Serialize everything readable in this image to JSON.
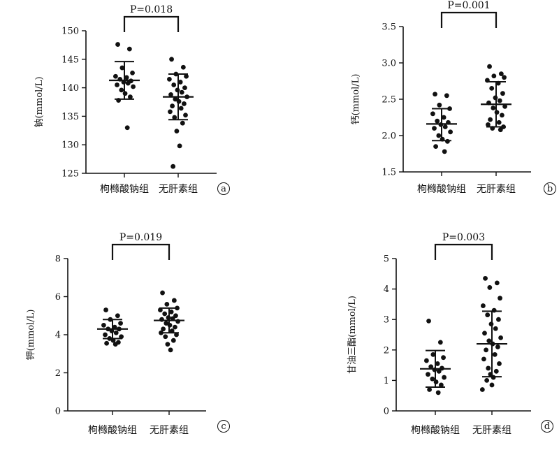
{
  "chart_data": [
    {
      "panel": "a",
      "type": "scatter",
      "ylabel": "钠(mmol/L)",
      "ylim": [
        125,
        150
      ],
      "yticks": [
        125,
        130,
        135,
        140,
        145,
        150
      ],
      "categories": [
        "枸橼酸钠组",
        "无肝素组"
      ],
      "significance": "P=0.018",
      "series": [
        {
          "category": "枸橼酸钠组",
          "mean": 141.3,
          "sd_low": 138.0,
          "sd_high": 144.6,
          "values": [
            147.6,
            146.8,
            143.5,
            142.6,
            142.0,
            141.8,
            141.5,
            141.2,
            141.0,
            140.8,
            140.5,
            140.2,
            139.6,
            139.0,
            138.4,
            137.8,
            133.0
          ]
        },
        {
          "category": "无肝素组",
          "mean": 138.4,
          "sd_low": 134.4,
          "sd_high": 142.4,
          "values": [
            145.0,
            143.6,
            142.4,
            142.0,
            141.5,
            141.0,
            140.5,
            140.0,
            139.6,
            139.2,
            138.8,
            138.4,
            138.0,
            137.6,
            137.2,
            136.8,
            136.4,
            135.8,
            135.2,
            134.8,
            133.8,
            132.4,
            129.8,
            126.2
          ]
        }
      ]
    },
    {
      "panel": "b",
      "type": "scatter",
      "ylabel": "钙(mmol/L)",
      "ylim": [
        1.5,
        3.5
      ],
      "yticks": [
        1.5,
        2.0,
        2.5,
        3.0,
        3.5
      ],
      "categories": [
        "枸橼酸钠组",
        "无肝素组"
      ],
      "significance": "P=0.001",
      "series": [
        {
          "category": "枸橼酸钠组",
          "mean": 2.16,
          "sd_low": 1.93,
          "sd_high": 2.37,
          "values": [
            2.57,
            2.55,
            2.42,
            2.37,
            2.3,
            2.25,
            2.2,
            2.18,
            2.15,
            2.12,
            2.1,
            2.05,
            2.0,
            1.95,
            1.92,
            1.85,
            1.78
          ]
        },
        {
          "category": "无肝素组",
          "mean": 2.43,
          "sd_low": 2.12,
          "sd_high": 2.74,
          "values": [
            2.95,
            2.85,
            2.82,
            2.8,
            2.76,
            2.72,
            2.65,
            2.58,
            2.52,
            2.48,
            2.45,
            2.4,
            2.38,
            2.32,
            2.28,
            2.22,
            2.18,
            2.15,
            2.12,
            2.1,
            2.08
          ]
        }
      ]
    },
    {
      "panel": "c",
      "type": "scatter",
      "ylabel": "钾(mmol/L)",
      "ylim": [
        0,
        8
      ],
      "yticks": [
        0,
        2,
        4,
        6,
        8
      ],
      "categories": [
        "枸橼酸钠组",
        "无肝素组"
      ],
      "significance": "P=0.019",
      "series": [
        {
          "category": "枸橼酸钠组",
          "mean": 4.3,
          "sd_low": 3.8,
          "sd_high": 4.8,
          "values": [
            5.3,
            5.0,
            4.8,
            4.6,
            4.5,
            4.4,
            4.3,
            4.3,
            4.2,
            4.1,
            4.0,
            3.9,
            3.8,
            3.7,
            3.6,
            3.55,
            3.5
          ]
        },
        {
          "category": "无肝素组",
          "mean": 4.75,
          "sd_low": 4.1,
          "sd_high": 5.4,
          "values": [
            6.2,
            5.8,
            5.6,
            5.4,
            5.3,
            5.2,
            5.1,
            5.0,
            4.9,
            4.85,
            4.8,
            4.7,
            4.6,
            4.5,
            4.4,
            4.3,
            4.2,
            4.1,
            4.0,
            3.9,
            3.7,
            3.5,
            3.2
          ]
        }
      ]
    },
    {
      "panel": "d",
      "type": "scatter",
      "ylabel": "甘油三酯(mmol/L)",
      "ylim": [
        0,
        5
      ],
      "yticks": [
        0,
        1,
        2,
        3,
        4,
        5
      ],
      "categories": [
        "枸橼酸钠组",
        "无肝素组"
      ],
      "significance": "P=0.003",
      "series": [
        {
          "category": "枸橼酸钠组",
          "mean": 1.38,
          "sd_low": 0.78,
          "sd_high": 1.98,
          "values": [
            2.95,
            2.25,
            1.85,
            1.75,
            1.65,
            1.55,
            1.45,
            1.4,
            1.35,
            1.3,
            1.2,
            1.1,
            1.05,
            0.95,
            0.85,
            0.7,
            0.6
          ]
        },
        {
          "category": "无肝素组",
          "mean": 2.2,
          "sd_low": 1.12,
          "sd_high": 3.27,
          "values": [
            4.35,
            4.2,
            4.05,
            3.7,
            3.45,
            3.3,
            3.15,
            3.0,
            2.85,
            2.7,
            2.55,
            2.4,
            2.3,
            2.2,
            2.1,
            2.0,
            1.85,
            1.7,
            1.55,
            1.4,
            1.3,
            1.2,
            1.1,
            1.0,
            0.85,
            0.7
          ]
        }
      ]
    }
  ],
  "panel_tags": [
    "a",
    "b",
    "c",
    "d"
  ]
}
